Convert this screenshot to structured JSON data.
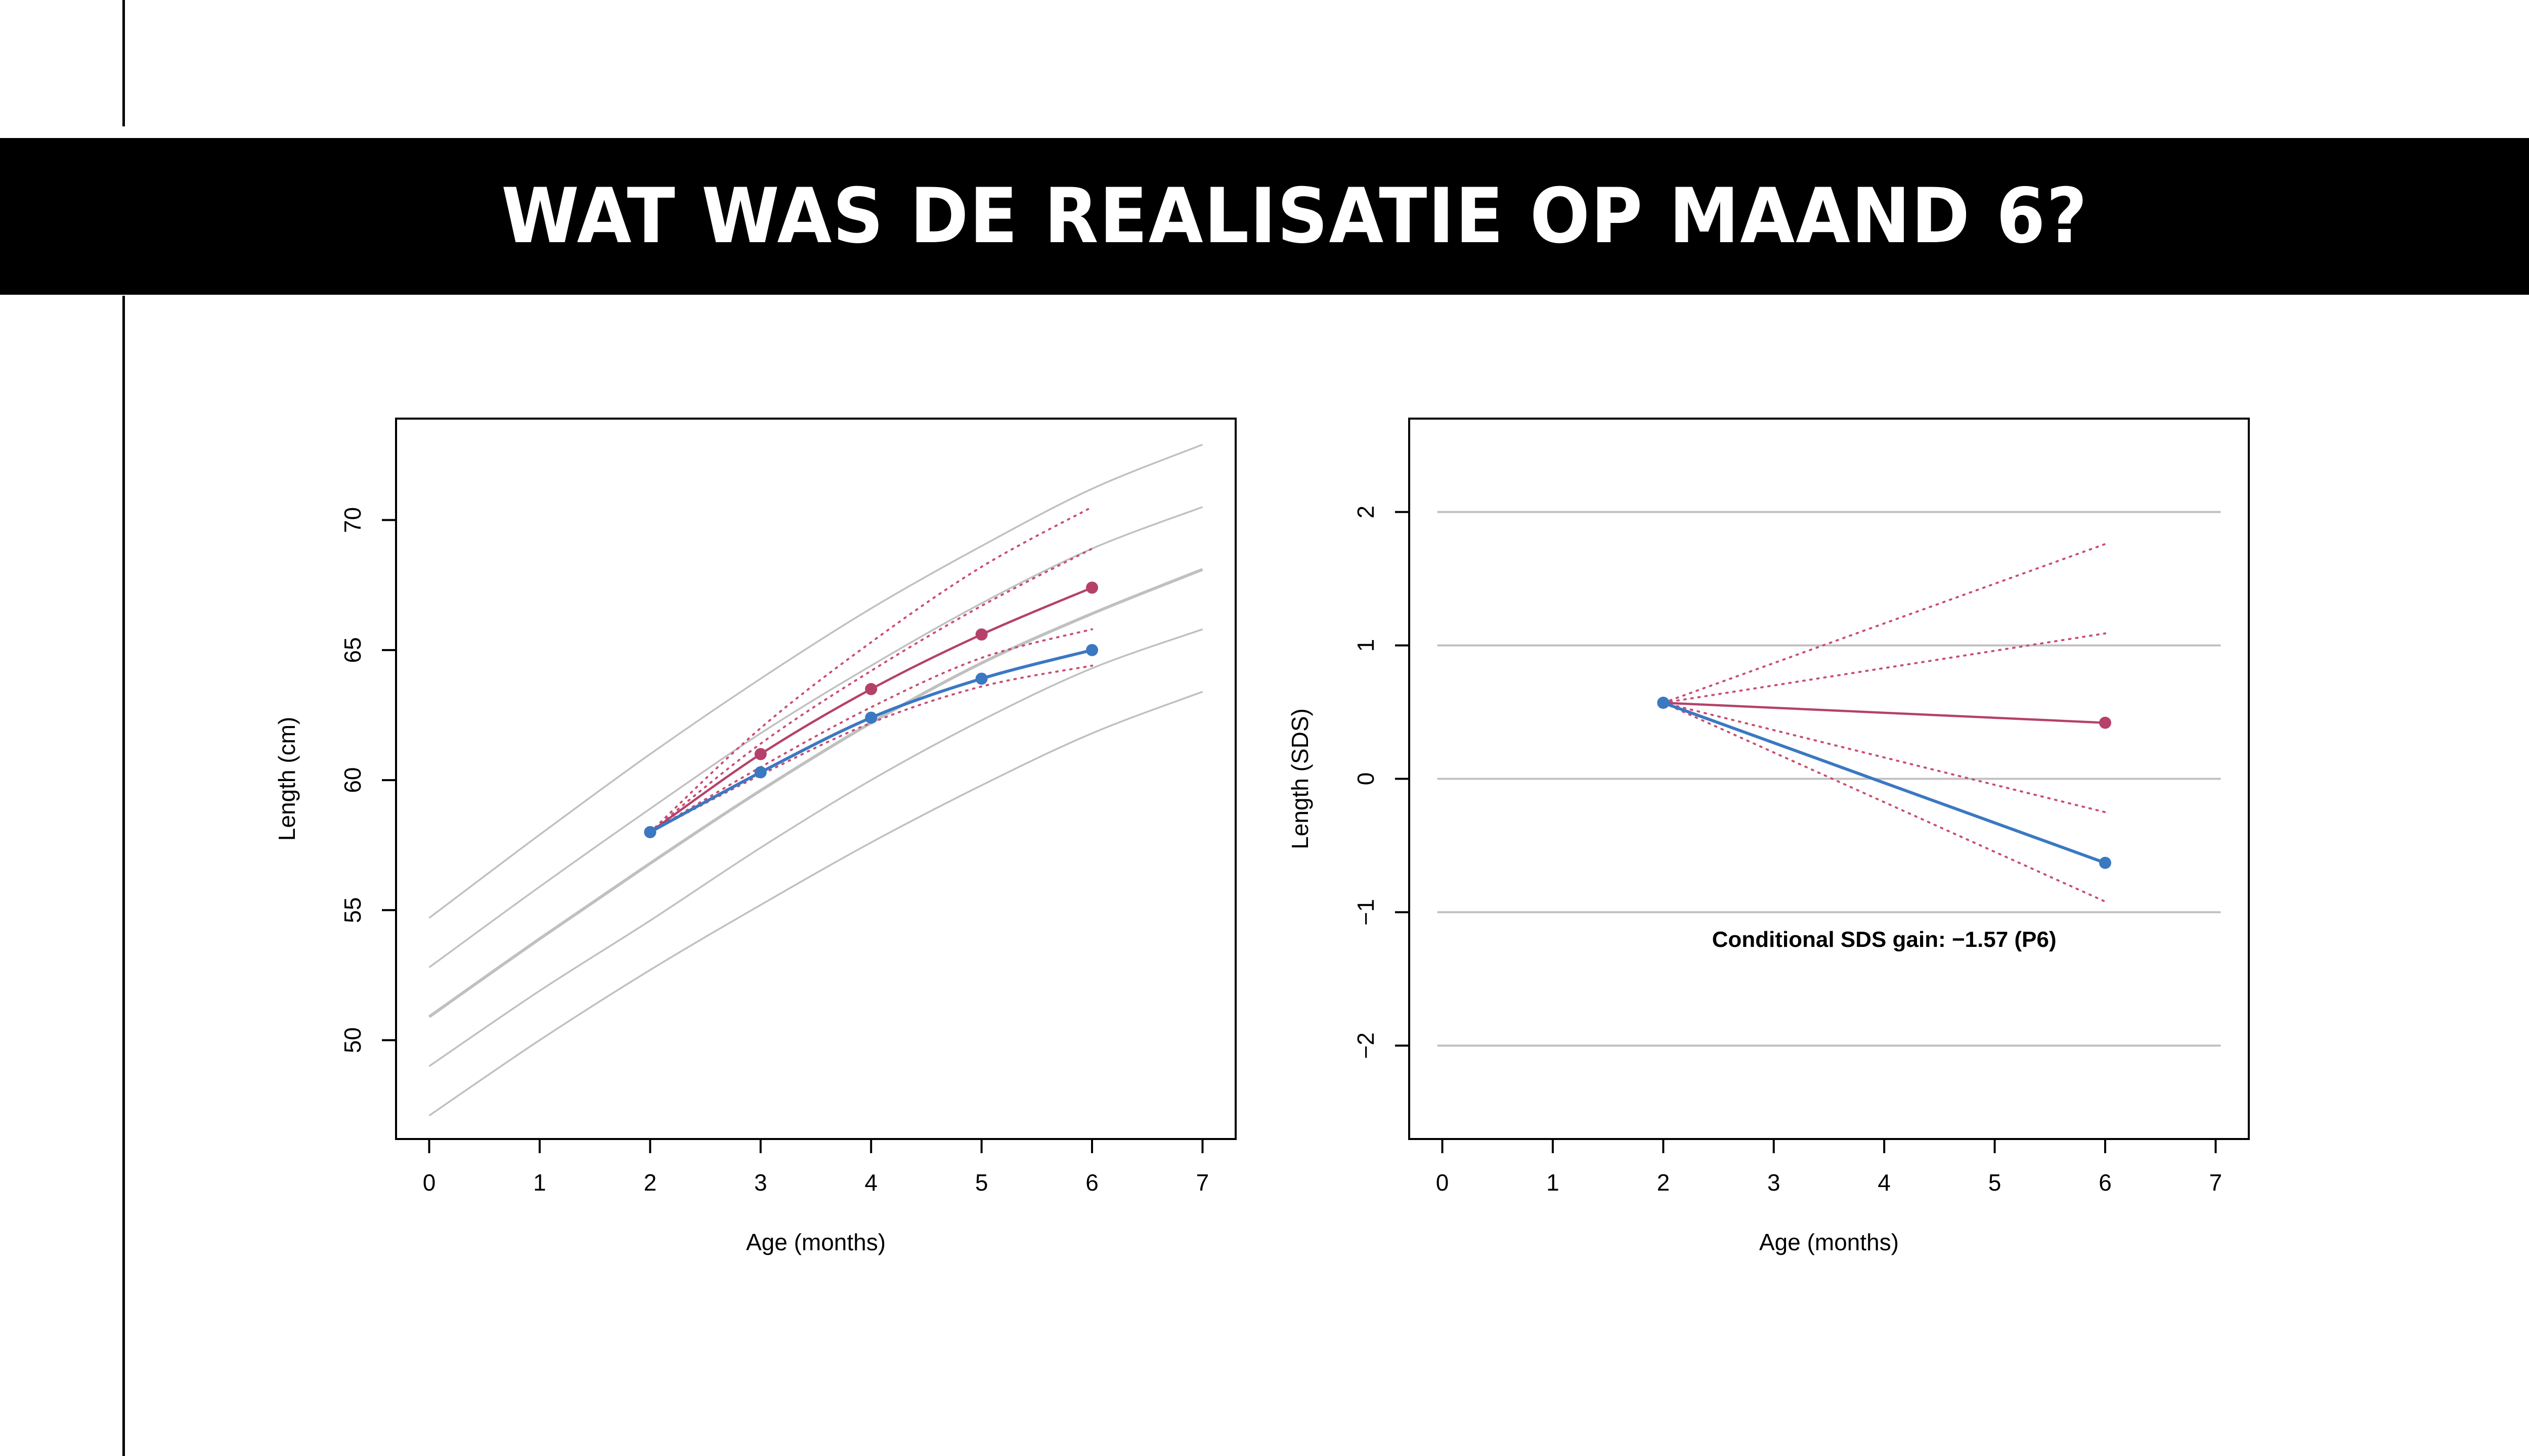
{
  "slide": {
    "title": "WAT WAS DE REALISATIE OP MAAND 6?"
  },
  "colors": {
    "background": "#ffffff",
    "title_bar": "#000000",
    "title_text": "#ffffff",
    "reference_curves": "#c0c0c0",
    "observed_series": "#3b78c2",
    "expected_series": "#b5416b",
    "predicted_interval": "#c94f72"
  },
  "chart_data": [
    {
      "type": "line",
      "xlabel": "Age (months)",
      "ylabel": "Length (cm)",
      "xlim": [
        -0.3,
        7.3
      ],
      "ylim": [
        46.2,
        73.9
      ],
      "xticks": [
        0,
        1,
        2,
        3,
        4,
        5,
        6,
        7
      ],
      "yticks": [
        50,
        55,
        60,
        65,
        70
      ],
      "grid": false,
      "reference_curves": [
        {
          "x": [
            0,
            1,
            2,
            3,
            4,
            5,
            6,
            7
          ],
          "values": [
            47.1,
            50.0,
            52.7,
            55.2,
            57.6,
            59.8,
            61.8,
            63.4
          ]
        },
        {
          "x": [
            0,
            1,
            2,
            3,
            4,
            5,
            6,
            7
          ],
          "values": [
            49.0,
            51.9,
            54.6,
            57.4,
            60.0,
            62.3,
            64.3,
            65.8
          ]
        },
        {
          "x": [
            0,
            1,
            2,
            3,
            4,
            5,
            6,
            7
          ],
          "values": [
            50.9,
            53.9,
            56.8,
            59.6,
            62.2,
            64.5,
            66.4,
            68.1
          ]
        },
        {
          "x": [
            0,
            1,
            2,
            3,
            4,
            5,
            6,
            7
          ],
          "values": [
            52.8,
            55.9,
            58.9,
            61.8,
            64.4,
            66.8,
            68.9,
            70.5
          ]
        },
        {
          "x": [
            0,
            1,
            2,
            3,
            4,
            5,
            6,
            7
          ],
          "values": [
            54.7,
            57.9,
            61.0,
            63.9,
            66.6,
            69.0,
            71.2,
            72.9
          ]
        }
      ],
      "predicted_interval_lines": [
        {
          "x": [
            2,
            3,
            4,
            5,
            6
          ],
          "values": [
            58.0,
            62.0,
            65.3,
            68.2,
            70.5
          ]
        },
        {
          "x": [
            2,
            3,
            4,
            5,
            6
          ],
          "values": [
            58.0,
            61.4,
            64.2,
            66.7,
            68.9
          ]
        },
        {
          "x": [
            2,
            3,
            4,
            5,
            6
          ],
          "values": [
            58.0,
            60.5,
            62.8,
            64.7,
            65.8
          ]
        },
        {
          "x": [
            2,
            3,
            4,
            5,
            6
          ],
          "values": [
            58.0,
            60.2,
            62.2,
            63.6,
            64.4
          ]
        }
      ],
      "series": [
        {
          "x": [
            2,
            3,
            4,
            5,
            6
          ],
          "values": [
            58.0,
            61.0,
            63.5,
            65.6,
            67.4
          ]
        },
        {
          "x": [
            2,
            3,
            4,
            5,
            6
          ],
          "values": [
            58.0,
            60.3,
            62.4,
            63.9,
            65.0
          ]
        }
      ]
    },
    {
      "type": "line",
      "xlabel": "Age (months)",
      "ylabel": "Length (SDS)",
      "xlim": [
        -0.3,
        7.3
      ],
      "ylim": [
        -2.7,
        2.7
      ],
      "xticks": [
        0,
        1,
        2,
        3,
        4,
        5,
        6,
        7
      ],
      "yticks": [
        -2,
        -1,
        0,
        1,
        2
      ],
      "gridlines_y": [
        -2,
        -1,
        0,
        1,
        2
      ],
      "annotation": "Conditional SDS gain: −1.57 (P6)",
      "annotation_pos": {
        "x": 4.0,
        "y": -1.2
      },
      "predicted_interval_lines": [
        {
          "x": [
            2,
            6
          ],
          "values": [
            0.57,
            1.76
          ]
        },
        {
          "x": [
            2,
            6
          ],
          "values": [
            0.57,
            1.09
          ]
        },
        {
          "x": [
            2,
            6
          ],
          "values": [
            0.57,
            -0.25
          ]
        },
        {
          "x": [
            2,
            6
          ],
          "values": [
            0.57,
            -0.92
          ]
        }
      ],
      "series": [
        {
          "x": [
            2,
            6
          ],
          "values": [
            0.57,
            0.42
          ]
        },
        {
          "x": [
            2,
            6
          ],
          "values": [
            0.57,
            -0.63
          ]
        }
      ]
    }
  ]
}
